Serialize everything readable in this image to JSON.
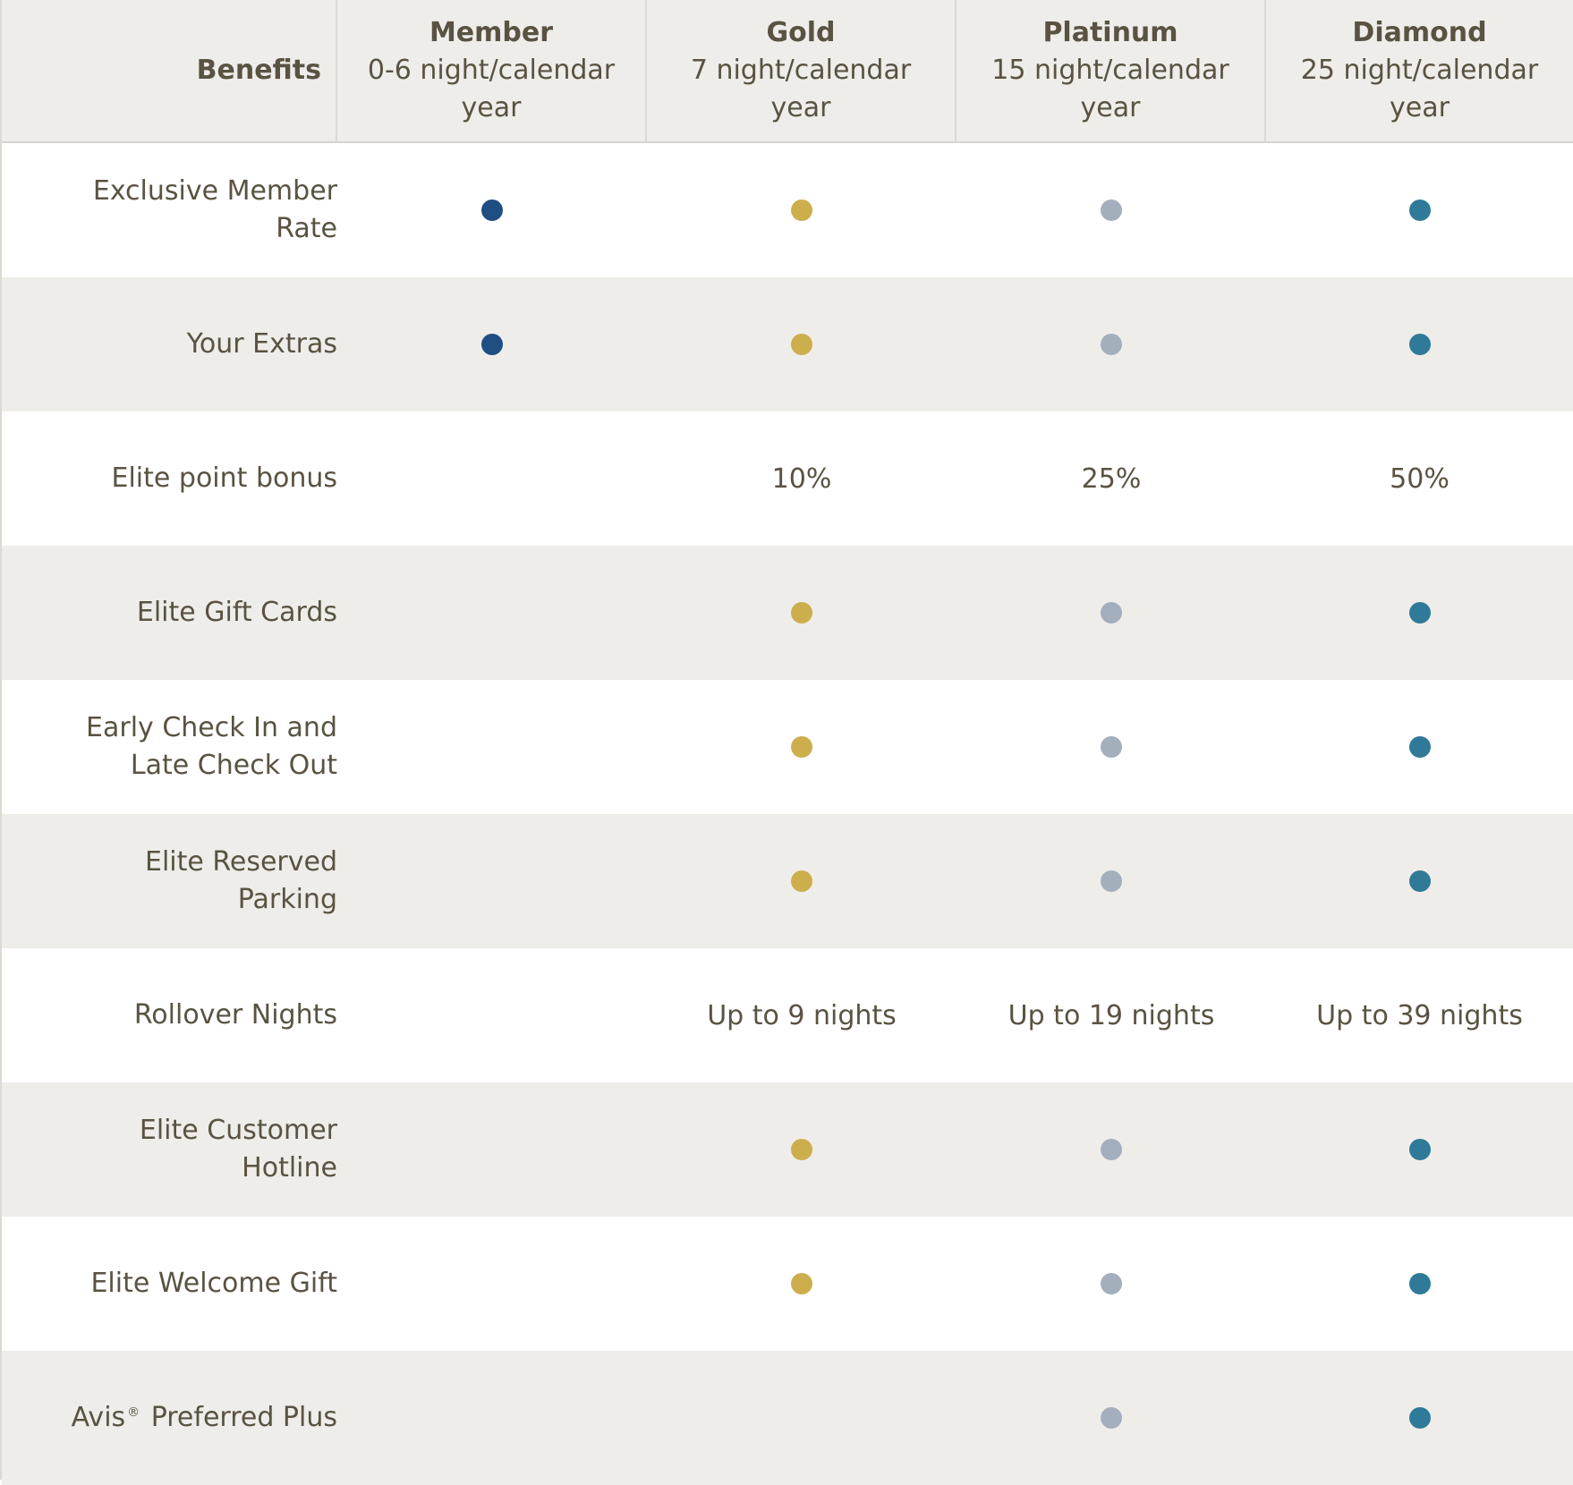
{
  "header": {
    "benefits_label": "Benefits",
    "tiers": [
      {
        "name": "Member",
        "sub": "0-6 night/calendar year"
      },
      {
        "name": "Gold",
        "sub": "7 night/calendar year"
      },
      {
        "name": "Platinum",
        "sub": "15 night/calendar year"
      },
      {
        "name": "Diamond",
        "sub": "25 night/calendar year"
      }
    ]
  },
  "colors": {
    "member": "#1f4e82",
    "gold": "#cdae4c",
    "platinum": "#a3afbc",
    "diamond": "#2f7a98"
  },
  "rows": [
    {
      "label": "Exclusive Member Rate",
      "cells": [
        "dot",
        "dot",
        "dot",
        "dot"
      ]
    },
    {
      "label": "Your Extras",
      "cells": [
        "dot",
        "dot",
        "dot",
        "dot"
      ]
    },
    {
      "label": "Elite point bonus",
      "cells": [
        "",
        "10%",
        "25%",
        "50%"
      ]
    },
    {
      "label": "Elite Gift Cards",
      "cells": [
        "",
        "dot",
        "dot",
        "dot"
      ]
    },
    {
      "label": "Early Check In and Late Check Out",
      "cells": [
        "",
        "dot",
        "dot",
        "dot"
      ]
    },
    {
      "label": "Elite Reserved Parking",
      "cells": [
        "",
        "dot",
        "dot",
        "dot"
      ]
    },
    {
      "label": "Rollover Nights",
      "cells": [
        "",
        "Up to 9 nights",
        "Up to 19 nights",
        "Up to 39 nights"
      ]
    },
    {
      "label": "Elite Customer Hotline",
      "cells": [
        "",
        "dot",
        "dot",
        "dot"
      ]
    },
    {
      "label": "Elite Welcome Gift",
      "cells": [
        "",
        "dot",
        "dot",
        "dot"
      ]
    },
    {
      "label": "Avis",
      "label_mark": "®",
      "label_rest": " Preferred Plus",
      "cells": [
        "",
        "",
        "dot",
        "dot"
      ]
    }
  ]
}
